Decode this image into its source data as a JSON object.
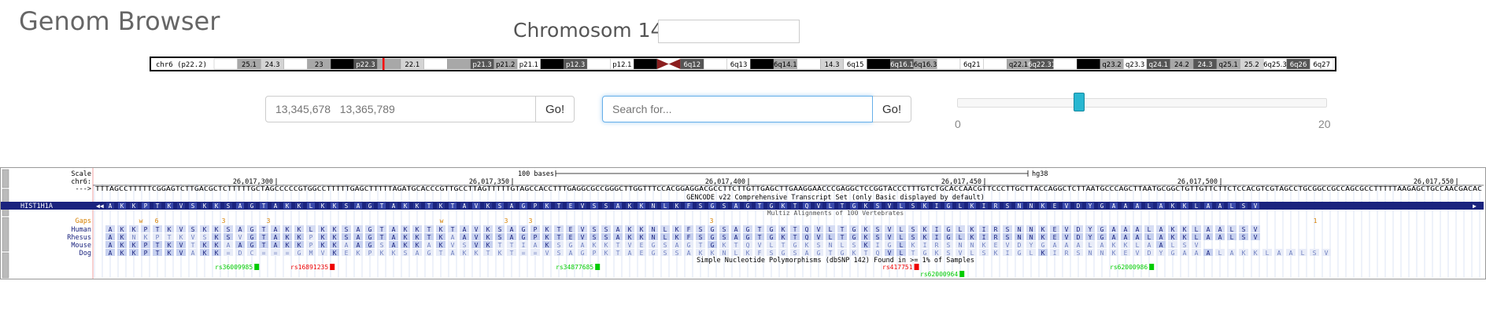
{
  "app_title": "Genom Browser",
  "chromosome_label": "Chromosom 14",
  "chromosome_input_value": "",
  "ideogram": {
    "label": "chr6 (p22.2)",
    "bands": [
      {
        "name": "",
        "stain": "white"
      },
      {
        "name": "25.1",
        "stain": "gray"
      },
      {
        "name": "24.3",
        "stain": "light"
      },
      {
        "name": "",
        "stain": "white"
      },
      {
        "name": "23",
        "stain": "gray"
      },
      {
        "name": "",
        "stain": "black"
      },
      {
        "name": "p22.3",
        "stain": "dark"
      },
      {
        "name": "",
        "stain": "gray"
      },
      {
        "name": "22.1",
        "stain": "light"
      },
      {
        "name": "",
        "stain": "white"
      },
      {
        "name": "",
        "stain": "gray"
      },
      {
        "name": "p21.3",
        "stain": "dark"
      },
      {
        "name": "p21.2",
        "stain": "gray"
      },
      {
        "name": "p21.1",
        "stain": "white"
      },
      {
        "name": "",
        "stain": "black"
      },
      {
        "name": "p12.3",
        "stain": "dark"
      },
      {
        "name": "",
        "stain": "white"
      },
      {
        "name": "p12.1",
        "stain": "white"
      },
      {
        "name": "",
        "stain": "black"
      },
      {
        "name": "",
        "stain": "centromere"
      },
      {
        "name": "6q12",
        "stain": "dark"
      },
      {
        "name": "",
        "stain": "white"
      },
      {
        "name": "6q13",
        "stain": "white"
      },
      {
        "name": "",
        "stain": "black"
      },
      {
        "name": "6q14.1",
        "stain": "gray"
      },
      {
        "name": "",
        "stain": "white"
      },
      {
        "name": "14.3",
        "stain": "light"
      },
      {
        "name": "6q15",
        "stain": "white"
      },
      {
        "name": "",
        "stain": "black"
      },
      {
        "name": "6q16.1",
        "stain": "dark"
      },
      {
        "name": "6q16.3",
        "stain": "gray"
      },
      {
        "name": "",
        "stain": "white"
      },
      {
        "name": "6q21",
        "stain": "white"
      },
      {
        "name": "",
        "stain": "white"
      },
      {
        "name": "q22.1",
        "stain": "gray"
      },
      {
        "name": "6q22.31",
        "stain": "dark"
      },
      {
        "name": "",
        "stain": "white"
      },
      {
        "name": "",
        "stain": "black"
      },
      {
        "name": "q23.2",
        "stain": "gray"
      },
      {
        "name": "q23.3",
        "stain": "white"
      },
      {
        "name": "q24.1",
        "stain": "dark"
      },
      {
        "name": "24.2",
        "stain": "gray"
      },
      {
        "name": "24.3",
        "stain": "dark"
      },
      {
        "name": "q25.1",
        "stain": "gray"
      },
      {
        "name": "25.2",
        "stain": "light"
      },
      {
        "name": "6q25.3",
        "stain": "white"
      },
      {
        "name": "6q26",
        "stain": "dark"
      },
      {
        "name": "6q27",
        "stain": "white"
      }
    ]
  },
  "range_input_placeholder": "13,345,678   13,365,789",
  "range_go_label": "Go!",
  "search_input_placeholder": "Search for...",
  "search_go_label": "Go!",
  "slider": {
    "min_label": "0",
    "max_label": "20",
    "value_fraction": 0.33
  },
  "track": {
    "scale_label": "Scale",
    "chrom_label": "chr6:",
    "arrow_label": "--->",
    "scale_text": "100 bases",
    "assembly": "hg38",
    "positions": [
      "26,017,300",
      "26,017,350",
      "26,017,400",
      "26,017,450",
      "26,017,500",
      "26,017,550"
    ],
    "dna_sequence": "TTTAGCCTTTTTCGGAGTCTTGACGCTCTTTTTGCTAGCCCCCGTGGCCTTTTTGAGCTTTTTAGATGCACCCGTTGCCTTAGTTTTTGTAGCCACCTTTGAGGCGCCGGGCTTGGTTTCCACGGAGGACGCCTTCTTGTTGAGCTTGAAGGAACCCGAGGCTCCGGTACCCTTTGTCTGCACCAACGTTCCCTTGCTTACCAGGCTCTTAATGCCCAGCTTAATGCGGCTGTTGTTCTTCTCCACGTCGTAGCCTGCGGCCGCCAGCGCCTTTTTAAGAGCTGCCAACGACAC",
    "gencode_label": "GENCODE v22 Comprehensive Transcript Set (only Basic displayed by default)",
    "gene_name": "HIST1H1A",
    "protein_sequence": "AKKPTKVSKKSAGTAKKLKKSAGTAKKTKTAVKSAGPKTEVSSAKKNLKFSGSAGTGKTQVLTGKSVLSKIGLKIRSNNKEVDYGAAALAKKLAALSV",
    "alignment_title": "Multiz Alignments of 100 Vertebrates",
    "gaps_label": "Gaps",
    "species": [
      {
        "name": "Human",
        "seq": "AKKPTKVSKKSAGTAKKLKKSAGTAKKTKTAVKSAGPKTEVSSAKKNLKFSGSAGTGKTQVLTGKSVLSKIGLKIRSNNKEVDYGAAALAKKLAALSV"
      },
      {
        "name": "Rhesus",
        "seq": "AKNKPTKVSKSVGTAKKPKKSAGTAKKTKAAVKSAGPKTEVSSAKKNLKFSGSAGTGKTQVLTGKSVLSKIGLKIRSNNKEVDYGAAALAKKLAALSV"
      },
      {
        "name": "Mouse",
        "seq": "AKKPTKVTKKAAGTAKKPKKAAGSAKKAKVSVKTTIAKSGAKKTVEGSAGTGKTQVLTGKSNLSKIGLKIRSNNKEVDYGAAALAKKLAALSV"
      },
      {
        "name": "Dog",
        "seq": "AKKPTKVAKK=DC===GMVKEKPKKSAGTAKKTKT==VSAGPKTAEGSSAKKNLKFSGSAGTGKTQVLTGKSVLSKIGLKIRSNNKEVDYGAAALAKKLAALSV"
      }
    ],
    "gap_marks": [
      "w",
      "6",
      "3",
      "3",
      "w",
      "3",
      "3",
      "3",
      "1"
    ],
    "snp_title": "Simple Nucleotide Polymorphisms (dbSNP 142) Found in >= 1% of Samples",
    "snps": [
      {
        "id": "rs36009985",
        "color": "#00cc00"
      },
      {
        "id": "rs16891235",
        "color": "#ee0000"
      },
      {
        "id": "rs34877685",
        "color": "#00cc00"
      },
      {
        "id": "rs417751",
        "color": "#ee0000"
      },
      {
        "id": "rs62000964",
        "color": "#00cc00"
      },
      {
        "id": "rs62000986",
        "color": "#00cc00"
      }
    ]
  }
}
